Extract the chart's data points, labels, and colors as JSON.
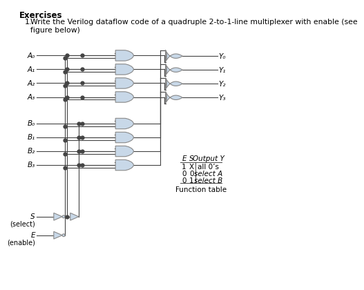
{
  "title": "Exercises",
  "question_num": "1.",
  "question_text": "Write the Verilog dataflow code of a quadruple 2-to-1-line multiplexer with enable (see\nfigure below)",
  "inputs_A": [
    "A₀",
    "A₁",
    "A₂",
    "A₃"
  ],
  "inputs_B": [
    "B₀",
    "B₁",
    "B₂",
    "B₃"
  ],
  "outputs_Y": [
    "Y₀",
    "Y₁",
    "Y₂",
    "Y₃"
  ],
  "signal_S": "S",
  "signal_E": "E",
  "label_select": "(select)",
  "label_enable": "(enable)",
  "table_headers": [
    "E",
    "S",
    "Output Y"
  ],
  "table_rows": [
    [
      "1",
      "X",
      "all 0’s"
    ],
    [
      "0",
      "0",
      "select A"
    ],
    [
      "0",
      "1",
      "select B"
    ]
  ],
  "table_caption": "Function table",
  "bg_color": "#ffffff",
  "gate_fill": "#c8d8e8",
  "gate_edge": "#888888",
  "line_color": "#444444",
  "text_color": "#000000"
}
